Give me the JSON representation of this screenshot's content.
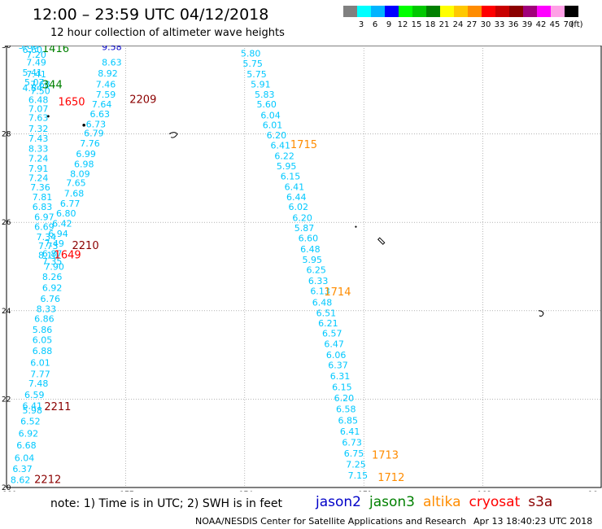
{
  "title": "12:00 – 23:59 UTC 04/12/2018",
  "subtitle": "12 hour collection of altimeter wave heights",
  "scale": {
    "unit": "(ft)",
    "colors": [
      "#808080",
      "#00ffff",
      "#00b4ff",
      "#0000ff",
      "#00ff00",
      "#00c800",
      "#008000",
      "#ffff00",
      "#ffc800",
      "#ff8c00",
      "#ff0000",
      "#c80000",
      "#8b0000",
      "#a0007a",
      "#ff00ff",
      "#ffa0e6",
      "#000000"
    ],
    "labels": [
      "3",
      "6",
      "9",
      "12",
      "15",
      "18",
      "21",
      "24",
      "27",
      "30",
      "33",
      "36",
      "39",
      "42",
      "45",
      "70"
    ]
  },
  "map": {
    "lon_range": [
      -180,
      -165
    ],
    "lat_range": [
      20,
      30
    ],
    "lon_ticks": [
      "-180",
      "-177",
      "-174",
      "-171",
      "-168",
      "-16"
    ],
    "lat_ticks": [
      "30",
      "28",
      "26",
      "24",
      "22",
      "20"
    ],
    "colors": {
      "text": "#00c8ff",
      "jason2": "#0000c8",
      "jason3": "#008000",
      "altika": "#ff8c00",
      "cryosat": "#ff0000",
      "s3a": "#8b0000",
      "grid": "#888888"
    },
    "track_left": [
      {
        "lon": -179.7,
        "lat": 29.93,
        "v": "5.80"
      },
      {
        "lon": -179.6,
        "lat": 29.83,
        "v": "6.60"
      },
      {
        "lon": -179.5,
        "lat": 29.72,
        "v": "7.20"
      },
      {
        "lon": -179.5,
        "lat": 29.55,
        "v": "7.49"
      },
      {
        "lon": -179.6,
        "lat": 29.32,
        "v": "5.41"
      },
      {
        "lon": -179.5,
        "lat": 29.28,
        "v": "7.41"
      },
      {
        "lon": -179.55,
        "lat": 29.1,
        "v": "5.07"
      },
      {
        "lon": -179.4,
        "lat": 29.05,
        "v": "7.68"
      },
      {
        "lon": -179.6,
        "lat": 28.97,
        "v": "4.84"
      },
      {
        "lon": -179.4,
        "lat": 28.9,
        "v": "7.50"
      },
      {
        "lon": -179.45,
        "lat": 28.7,
        "v": "6.48"
      },
      {
        "lon": -179.45,
        "lat": 28.5,
        "v": "7.07"
      },
      {
        "lon": -179.45,
        "lat": 28.3,
        "v": "7.63"
      },
      {
        "lon": -179.45,
        "lat": 28.05,
        "v": "7.32"
      },
      {
        "lon": -179.45,
        "lat": 27.83,
        "v": "7.43"
      },
      {
        "lon": -179.45,
        "lat": 27.6,
        "v": "8.33"
      },
      {
        "lon": -179.45,
        "lat": 27.38,
        "v": "7.24"
      },
      {
        "lon": -179.45,
        "lat": 27.15,
        "v": "7.91"
      },
      {
        "lon": -179.45,
        "lat": 26.93,
        "v": "7.24"
      },
      {
        "lon": -179.4,
        "lat": 26.72,
        "v": "7.36"
      },
      {
        "lon": -179.35,
        "lat": 26.5,
        "v": "7.81"
      },
      {
        "lon": -179.35,
        "lat": 26.28,
        "v": "6.83"
      },
      {
        "lon": -179.3,
        "lat": 26.05,
        "v": "6.97"
      },
      {
        "lon": -179.3,
        "lat": 25.83,
        "v": "6.69"
      },
      {
        "lon": -179.25,
        "lat": 25.6,
        "v": "7.34"
      },
      {
        "lon": -179.2,
        "lat": 25.4,
        "v": "7.73"
      },
      {
        "lon": -179.2,
        "lat": 25.18,
        "v": "8.10"
      },
      {
        "lon": -179.05,
        "lat": 24.93,
        "v": "7.90"
      },
      {
        "lon": -179.1,
        "lat": 24.7,
        "v": "8.26"
      },
      {
        "lon": -179.1,
        "lat": 24.45,
        "v": "6.92"
      },
      {
        "lon": -179.15,
        "lat": 24.2,
        "v": "6.76"
      },
      {
        "lon": -179.25,
        "lat": 23.97,
        "v": "8.33"
      },
      {
        "lon": -179.3,
        "lat": 23.75,
        "v": "6.86"
      },
      {
        "lon": -179.35,
        "lat": 23.5,
        "v": "5.86"
      },
      {
        "lon": -179.35,
        "lat": 23.27,
        "v": "6.05"
      },
      {
        "lon": -179.35,
        "lat": 23.02,
        "v": "6.88"
      },
      {
        "lon": -179.4,
        "lat": 22.75,
        "v": "6.01"
      },
      {
        "lon": -179.4,
        "lat": 22.5,
        "v": "7.77"
      },
      {
        "lon": -179.45,
        "lat": 22.28,
        "v": "7.48"
      },
      {
        "lon": -179.55,
        "lat": 22.03,
        "v": "6.59"
      },
      {
        "lon": -179.6,
        "lat": 21.78,
        "v": "6.41"
      },
      {
        "lon": -179.6,
        "lat": 21.68,
        "v": "5.98"
      },
      {
        "lon": -179.65,
        "lat": 21.43,
        "v": "6.52"
      },
      {
        "lon": -179.7,
        "lat": 21.15,
        "v": "6.92"
      },
      {
        "lon": -179.75,
        "lat": 20.88,
        "v": "6.68"
      },
      {
        "lon": -179.8,
        "lat": 20.6,
        "v": "6.04"
      },
      {
        "lon": -179.85,
        "lat": 20.35,
        "v": "6.37"
      },
      {
        "lon": -179.9,
        "lat": 20.1,
        "v": "8.62"
      }
    ],
    "track_mid": [
      {
        "lon": -177.6,
        "lat": 29.55,
        "v": "8.63"
      },
      {
        "lon": -177.7,
        "lat": 29.3,
        "v": "8.92"
      },
      {
        "lon": -177.75,
        "lat": 29.05,
        "v": "7.46"
      },
      {
        "lon": -177.75,
        "lat": 28.82,
        "v": "7.59"
      },
      {
        "lon": -177.85,
        "lat": 28.6,
        "v": "7.64"
      },
      {
        "lon": -177.9,
        "lat": 28.38,
        "v": "6.63"
      },
      {
        "lon": -178.0,
        "lat": 28.15,
        "v": "6.73"
      },
      {
        "lon": -178.05,
        "lat": 27.95,
        "v": "6.79"
      },
      {
        "lon": -178.15,
        "lat": 27.72,
        "v": "7.76"
      },
      {
        "lon": -178.25,
        "lat": 27.48,
        "v": "6.99"
      },
      {
        "lon": -178.3,
        "lat": 27.25,
        "v": "6.98"
      },
      {
        "lon": -178.4,
        "lat": 27.03,
        "v": "8.09"
      },
      {
        "lon": -178.5,
        "lat": 26.82,
        "v": "7.65"
      },
      {
        "lon": -178.55,
        "lat": 26.58,
        "v": "7.68"
      },
      {
        "lon": -178.65,
        "lat": 26.35,
        "v": "6.77"
      },
      {
        "lon": -178.75,
        "lat": 26.13,
        "v": "6.80"
      },
      {
        "lon": -178.85,
        "lat": 25.9,
        "v": "6.42"
      },
      {
        "lon": -178.95,
        "lat": 25.67,
        "v": "6.94"
      },
      {
        "lon": -179.05,
        "lat": 25.45,
        "v": "7.49"
      },
      {
        "lon": -179.1,
        "lat": 25.22,
        "v": "6.87"
      },
      {
        "lon": -179.1,
        "lat": 25.05,
        "v": "7.35"
      }
    ],
    "track_east": [
      {
        "lon": -174.1,
        "lat": 29.75,
        "v": "5.80"
      },
      {
        "lon": -174.05,
        "lat": 29.52,
        "v": "5.75"
      },
      {
        "lon": -173.95,
        "lat": 29.28,
        "v": "5.75"
      },
      {
        "lon": -173.85,
        "lat": 29.05,
        "v": "5.91"
      },
      {
        "lon": -173.75,
        "lat": 28.82,
        "v": "5.83"
      },
      {
        "lon": -173.7,
        "lat": 28.6,
        "v": "5.60"
      },
      {
        "lon": -173.6,
        "lat": 28.35,
        "v": "6.04"
      },
      {
        "lon": -173.55,
        "lat": 28.13,
        "v": "6.01"
      },
      {
        "lon": -173.45,
        "lat": 27.9,
        "v": "6.20"
      },
      {
        "lon": -173.35,
        "lat": 27.67,
        "v": "6.41"
      },
      {
        "lon": -173.25,
        "lat": 27.43,
        "v": "6.22"
      },
      {
        "lon": -173.2,
        "lat": 27.2,
        "v": "5.95"
      },
      {
        "lon": -173.1,
        "lat": 26.97,
        "v": "6.15"
      },
      {
        "lon": -173.0,
        "lat": 26.73,
        "v": "6.41"
      },
      {
        "lon": -172.95,
        "lat": 26.5,
        "v": "6.44"
      },
      {
        "lon": -172.9,
        "lat": 26.28,
        "v": "6.02"
      },
      {
        "lon": -172.8,
        "lat": 26.03,
        "v": "6.20"
      },
      {
        "lon": -172.75,
        "lat": 25.8,
        "v": "5.87"
      },
      {
        "lon": -172.65,
        "lat": 25.57,
        "v": "6.60"
      },
      {
        "lon": -172.6,
        "lat": 25.32,
        "v": "6.48"
      },
      {
        "lon": -172.55,
        "lat": 25.08,
        "v": "5.95"
      },
      {
        "lon": -172.45,
        "lat": 24.85,
        "v": "6.25"
      },
      {
        "lon": -172.4,
        "lat": 24.6,
        "v": "6.33"
      },
      {
        "lon": -172.35,
        "lat": 24.37,
        "v": "6.13"
      },
      {
        "lon": -172.3,
        "lat": 24.12,
        "v": "6.48"
      },
      {
        "lon": -172.2,
        "lat": 23.88,
        "v": "6.51"
      },
      {
        "lon": -172.15,
        "lat": 23.65,
        "v": "6.21"
      },
      {
        "lon": -172.05,
        "lat": 23.42,
        "v": "6.57"
      },
      {
        "lon": -172.0,
        "lat": 23.18,
        "v": "6.47"
      },
      {
        "lon": -171.95,
        "lat": 22.93,
        "v": "6.06"
      },
      {
        "lon": -171.9,
        "lat": 22.7,
        "v": "6.37"
      },
      {
        "lon": -171.85,
        "lat": 22.45,
        "v": "6.31"
      },
      {
        "lon": -171.8,
        "lat": 22.2,
        "v": "6.15"
      },
      {
        "lon": -171.75,
        "lat": 21.95,
        "v": "6.20"
      },
      {
        "lon": -171.7,
        "lat": 21.7,
        "v": "6.58"
      },
      {
        "lon": -171.65,
        "lat": 21.45,
        "v": "6.85"
      },
      {
        "lon": -171.6,
        "lat": 21.2,
        "v": "6.41"
      },
      {
        "lon": -171.55,
        "lat": 20.95,
        "v": "6.73"
      },
      {
        "lon": -171.5,
        "lat": 20.7,
        "v": "6.75"
      },
      {
        "lon": -171.45,
        "lat": 20.45,
        "v": "7.25"
      },
      {
        "lon": -171.4,
        "lat": 20.2,
        "v": "7.15"
      }
    ],
    "labels": [
      {
        "lon": -179.1,
        "lat": 29.85,
        "v": "1416",
        "sat": "jason3"
      },
      {
        "lon": -179.1,
        "lat": 29.03,
        "v": "344",
        "sat": "jason3"
      },
      {
        "lon": -178.7,
        "lat": 28.65,
        "v": "1650",
        "sat": "cryosat"
      },
      {
        "lon": -176.9,
        "lat": 28.7,
        "v": "2209",
        "sat": "s3a"
      },
      {
        "lon": -178.35,
        "lat": 25.4,
        "v": "2210",
        "sat": "s3a"
      },
      {
        "lon": -178.8,
        "lat": 25.18,
        "v": "1649",
        "sat": "cryosat"
      },
      {
        "lon": -179.05,
        "lat": 21.75,
        "v": "2211",
        "sat": "s3a"
      },
      {
        "lon": -179.3,
        "lat": 20.1,
        "v": "2212",
        "sat": "s3a"
      },
      {
        "lon": -172.85,
        "lat": 27.68,
        "v": "1715",
        "sat": "altika"
      },
      {
        "lon": -172.0,
        "lat": 24.35,
        "v": "1714",
        "sat": "altika"
      },
      {
        "lon": -170.8,
        "lat": 20.65,
        "v": "1713",
        "sat": "altika"
      },
      {
        "lon": -170.65,
        "lat": 20.15,
        "v": "1712",
        "sat": "altika"
      },
      {
        "lon": -177.6,
        "lat": 29.9,
        "v": "9.58",
        "sat": "jason2"
      }
    ]
  },
  "note": "note:  1) Time is in UTC;  2) SWH is in feet",
  "legend": [
    {
      "name": "jason2",
      "color": "#0000c8"
    },
    {
      "name": "jason3",
      "color": "#008000"
    },
    {
      "name": "altika",
      "color": "#ff8c00"
    },
    {
      "name": "cryosat",
      "color": "#ff0000"
    },
    {
      "name": "s3a",
      "color": "#8b0000"
    }
  ],
  "footer": "NOAA/NESDIS Center for Satellite Applications and Research",
  "footer_date": "Apr 13 18:40:23 UTC 2018"
}
